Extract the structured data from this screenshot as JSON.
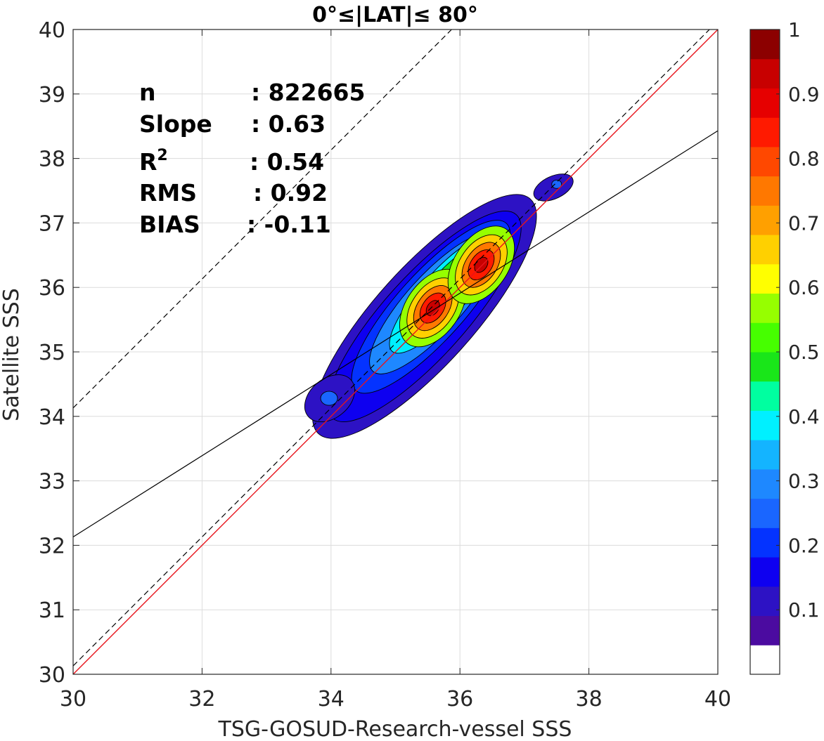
{
  "chart_data": {
    "type": "contour-density-scatter",
    "title": "0°≤|LAT|≤ 80°",
    "xlabel": "TSG-GOSUD-Research-vessel SSS",
    "ylabel": "Satellite SSS",
    "xlim": [
      30,
      40
    ],
    "ylim": [
      30,
      40
    ],
    "xticks": [
      "30",
      "32",
      "34",
      "36",
      "38",
      "40"
    ],
    "yticks": [
      "30",
      "31",
      "32",
      "33",
      "34",
      "35",
      "36",
      "37",
      "38",
      "39",
      "40"
    ],
    "grid": true,
    "stats": [
      {
        "label": "n",
        "value": ": 822665"
      },
      {
        "label": "Slope",
        "value": ": 0.63"
      },
      {
        "label": "R",
        "sup": "2",
        "value": ": 0.54"
      },
      {
        "label": "RMS",
        "value": ": 0.92"
      },
      {
        "label": "BIAS",
        "value": ": -0.11"
      }
    ],
    "lines": {
      "one_to_one": {
        "color": "#e8141c",
        "slope": 1,
        "intercept": 0
      },
      "regression": {
        "color": "#000000",
        "slope": 0.63,
        "y_at_x30": 32.13,
        "y_at_x40": 38.43
      },
      "upper_bound": {
        "color": "#000000",
        "style": "dashed",
        "y_at_x30": 34.13
      },
      "lower_bound": {
        "color": "#000000",
        "style": "dashed",
        "y_at_x30": 30.13
      }
    },
    "density_peaks": [
      {
        "x": 35.58,
        "y": 35.68,
        "level": 0.95
      },
      {
        "x": 36.33,
        "y": 36.35,
        "level": 0.95
      },
      {
        "x": 33.97,
        "y": 34.28,
        "level": 0.2
      },
      {
        "x": 37.5,
        "y": 37.6,
        "level": 0.2
      }
    ],
    "colorbar": {
      "ticks": [
        "0.1",
        "0.2",
        "0.3",
        "0.4",
        "0.5",
        "0.6",
        "0.7",
        "0.8",
        "0.9",
        "1"
      ],
      "range": [
        0,
        1
      ],
      "colors": [
        "#ffffff",
        "#4b0ba0",
        "#2d12c4",
        "#0e00f0",
        "#0433ff",
        "#1a66ff",
        "#1e88ff",
        "#14b4ff",
        "#00f0ff",
        "#00ffa0",
        "#19e619",
        "#46ff00",
        "#96ff00",
        "#ffff00",
        "#ffd000",
        "#ffa000",
        "#ff7800",
        "#ff4800",
        "#ff1a00",
        "#e60000",
        "#c80000",
        "#8c0000"
      ]
    }
  }
}
